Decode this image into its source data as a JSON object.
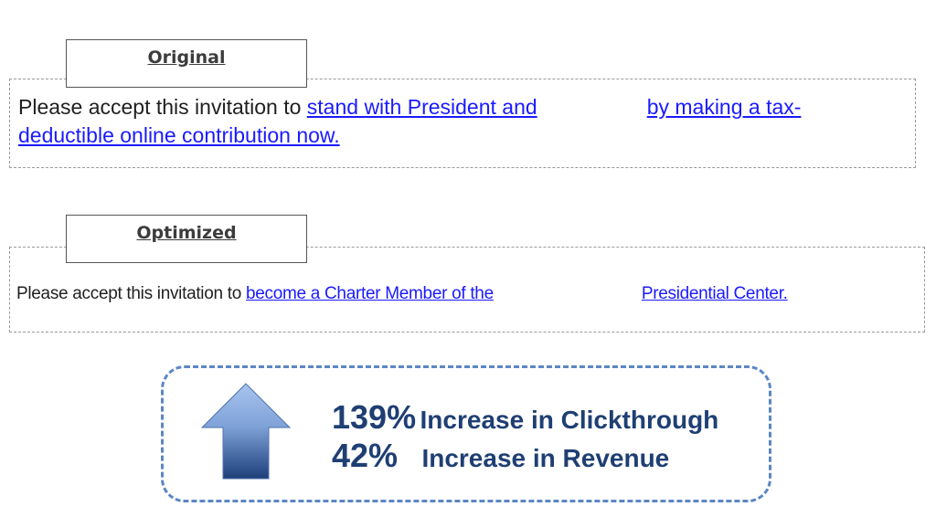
{
  "original": {
    "label": "Original",
    "text_before": "Please accept this invitation to ",
    "link_part1": "stand with President and",
    "link_part2": "by making a tax-",
    "link_line2": "deductible online contribution now."
  },
  "optimized": {
    "label": "Optimized",
    "text_before": "Please accept this invitation to ",
    "link_part1": "become a Charter Member of the",
    "link_part2": "Presidential Center."
  },
  "results": {
    "clickthrough_value": "139%",
    "clickthrough_label": "Increase in Clickthrough",
    "revenue_value": "42%",
    "revenue_label": "Increase in Revenue"
  },
  "colors": {
    "link": "#1a1aff",
    "metric_text": "#1f3f73",
    "box_border": "#5b87c4",
    "arrow_top": "#a8c4ee",
    "arrow_bottom": "#1e3f7a"
  },
  "icons": {
    "arrow": "up-arrow-icon"
  }
}
